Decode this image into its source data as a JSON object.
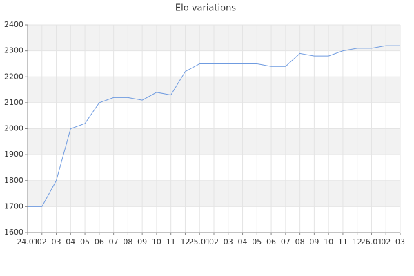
{
  "chart_data": {
    "type": "line",
    "title": "Elo variations",
    "categories": [
      "24.01",
      "02",
      "03",
      "04",
      "05",
      "06",
      "07",
      "08",
      "09",
      "10",
      "11",
      "12",
      "25.01",
      "02",
      "03",
      "04",
      "05",
      "06",
      "07",
      "08",
      "09",
      "10",
      "11",
      "12",
      "26.01",
      "02",
      "03"
    ],
    "series": [
      {
        "name": "Elo",
        "color": "#6f9be0",
        "values": [
          1700,
          1700,
          1800,
          2000,
          2020,
          2100,
          2120,
          2120,
          2110,
          2140,
          2130,
          2220,
          2250,
          2250,
          2250,
          2250,
          2250,
          2240,
          2240,
          2290,
          2280,
          2280,
          2300,
          2310,
          2310,
          2320,
          2320
        ]
      }
    ],
    "ylim": [
      1600,
      2400
    ],
    "yticks": [
      1600,
      1700,
      1800,
      1900,
      2000,
      2100,
      2200,
      2300,
      2400
    ],
    "grid": true
  }
}
